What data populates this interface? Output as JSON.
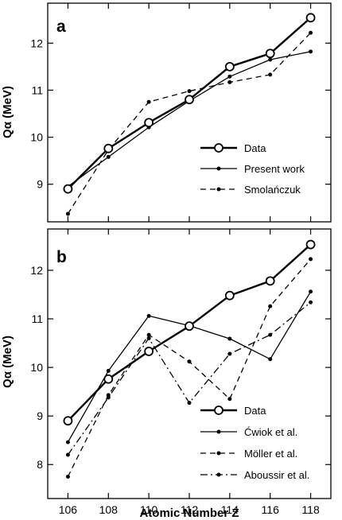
{
  "chart_data": [
    {
      "type": "line",
      "panel_label": "a",
      "ylabel": "Qα (MeV)",
      "xlabel": "",
      "x": [
        106,
        108,
        110,
        112,
        114,
        116,
        118
      ],
      "xlim": [
        105,
        119
      ],
      "ylim": [
        8.2,
        12.85
      ],
      "yticks": [
        9,
        10,
        11,
        12
      ],
      "legend_position": "lower-right",
      "series": [
        {
          "name": "Data",
          "style": "thick-open-circle",
          "values": [
            8.9,
            9.76,
            10.31,
            10.8,
            11.5,
            11.78,
            12.54
          ]
        },
        {
          "name": "Present work",
          "style": "solid-dot",
          "values": [
            8.95,
            9.58,
            10.21,
            10.77,
            11.29,
            11.65,
            11.82
          ]
        },
        {
          "name": "Smolańczuk",
          "style": "dashed-dot",
          "values": [
            8.37,
            9.73,
            10.75,
            10.98,
            11.17,
            11.33,
            12.22
          ]
        }
      ]
    },
    {
      "type": "line",
      "panel_label": "b",
      "ylabel": "Qα (MeV)",
      "xlabel": "Atomic Number Z",
      "x": [
        106,
        108,
        110,
        112,
        114,
        116,
        118
      ],
      "xlim": [
        105,
        119
      ],
      "ylim": [
        7.3,
        12.85
      ],
      "yticks": [
        8,
        9,
        10,
        11,
        12
      ],
      "xticks": [
        106,
        108,
        110,
        112,
        114,
        116,
        118
      ],
      "legend_position": "lower-right",
      "series": [
        {
          "name": "Data",
          "style": "thick-open-circle",
          "values": [
            8.9,
            9.76,
            10.33,
            10.85,
            11.48,
            11.78,
            12.53
          ]
        },
        {
          "name": "Ćwiok et al.",
          "style": "solid-dot",
          "values": [
            8.46,
            9.93,
            11.06,
            10.86,
            10.59,
            10.17,
            11.56
          ]
        },
        {
          "name": "Möller et al.",
          "style": "dashed-dot",
          "values": [
            7.75,
            9.43,
            10.67,
            10.12,
            9.35,
            11.26,
            12.23
          ]
        },
        {
          "name": "Aboussir et al.",
          "style": "dashdot-dot",
          "values": [
            8.2,
            9.38,
            10.6,
            9.27,
            10.28,
            10.67,
            11.34
          ]
        }
      ]
    }
  ]
}
